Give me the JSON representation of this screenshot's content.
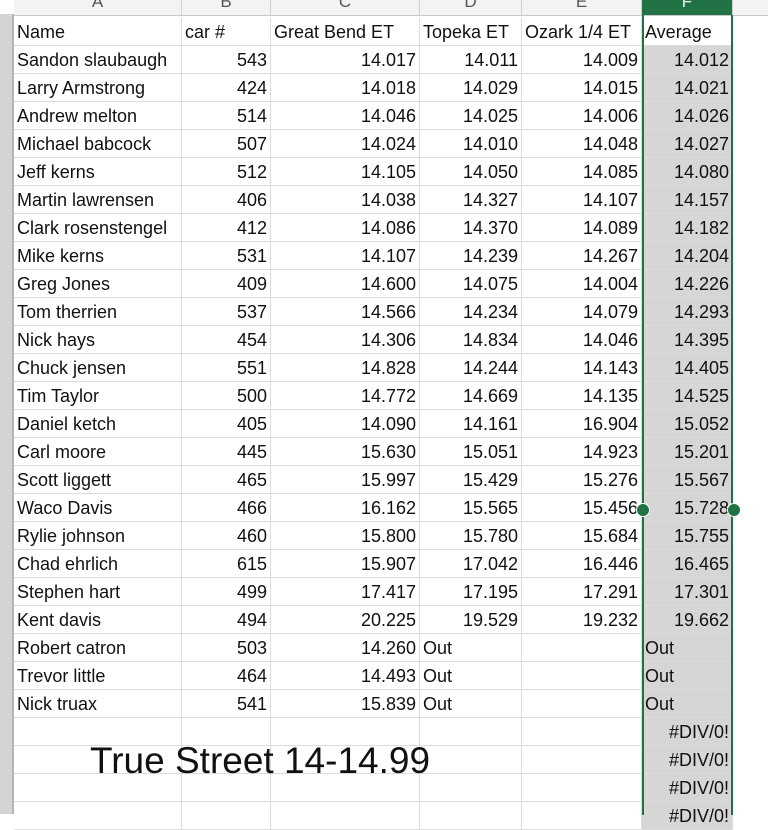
{
  "column_letters": [
    "A",
    "B",
    "C",
    "D",
    "E",
    "F"
  ],
  "selected_column": "F",
  "headers": [
    "Name",
    "car #",
    "Great Bend ET",
    "Topeka ET",
    "Ozark 1/4 ET",
    "Average"
  ],
  "rows": [
    [
      "Sandon slaubaugh",
      "543",
      "14.017",
      "14.011",
      "14.009",
      "14.012"
    ],
    [
      "Larry Armstrong",
      "424",
      "14.018",
      "14.029",
      "14.015",
      "14.021"
    ],
    [
      "Andrew melton",
      "514",
      "14.046",
      "14.025",
      "14.006",
      "14.026"
    ],
    [
      "Michael babcock",
      "507",
      "14.024",
      "14.010",
      "14.048",
      "14.027"
    ],
    [
      "Jeff kerns",
      "512",
      "14.105",
      "14.050",
      "14.085",
      "14.080"
    ],
    [
      "Martin lawrensen",
      "406",
      "14.038",
      "14.327",
      "14.107",
      "14.157"
    ],
    [
      "Clark rosenstengel",
      "412",
      "14.086",
      "14.370",
      "14.089",
      "14.182"
    ],
    [
      "Mike kerns",
      "531",
      "14.107",
      "14.239",
      "14.267",
      "14.204"
    ],
    [
      "Greg Jones",
      "409",
      "14.600",
      "14.075",
      "14.004",
      "14.226"
    ],
    [
      "Tom therrien",
      "537",
      "14.566",
      "14.234",
      "14.079",
      "14.293"
    ],
    [
      "Nick hays",
      "454",
      "14.306",
      "14.834",
      "14.046",
      "14.395"
    ],
    [
      "Chuck jensen",
      "551",
      "14.828",
      "14.244",
      "14.143",
      "14.405"
    ],
    [
      "Tim Taylor",
      "500",
      "14.772",
      "14.669",
      "14.135",
      "14.525"
    ],
    [
      "Daniel ketch",
      "405",
      "14.090",
      "14.161",
      "16.904",
      "15.052"
    ],
    [
      "Carl moore",
      "445",
      "15.630",
      "15.051",
      "14.923",
      "15.201"
    ],
    [
      "Scott liggett",
      "465",
      "15.997",
      "15.429",
      "15.276",
      "15.567"
    ],
    [
      "Waco Davis",
      "466",
      "16.162",
      "15.565",
      "15.456",
      "15.728"
    ],
    [
      "Rylie johnson",
      "460",
      "15.800",
      "15.780",
      "15.684",
      "15.755"
    ],
    [
      "Chad ehrlich",
      "615",
      "15.907",
      "17.042",
      "16.446",
      "16.465"
    ],
    [
      "Stephen hart",
      "499",
      "17.417",
      "17.195",
      "17.291",
      "17.301"
    ],
    [
      "Kent davis",
      "494",
      "20.225",
      "19.529",
      "19.232",
      "19.662"
    ],
    [
      "Robert catron",
      "503",
      "14.260",
      "Out",
      "",
      "Out"
    ],
    [
      "Trevor little",
      "464",
      "14.493",
      "Out",
      "",
      "Out"
    ],
    [
      "Nick truax",
      "541",
      "15.839",
      "Out",
      "",
      "Out"
    ],
    [
      "",
      "",
      "",
      "",
      "",
      "#DIV/0!"
    ],
    [
      "",
      "",
      "",
      "",
      "",
      "#DIV/0!"
    ],
    [
      "",
      "",
      "",
      "",
      "",
      "#DIV/0!"
    ],
    [
      "",
      "",
      "",
      "",
      "",
      "#DIV/0!"
    ]
  ],
  "overlay_text": "True Street 14-14.99",
  "colors": {
    "selection": "#217346",
    "selected_fill": "#d6d6d6"
  }
}
